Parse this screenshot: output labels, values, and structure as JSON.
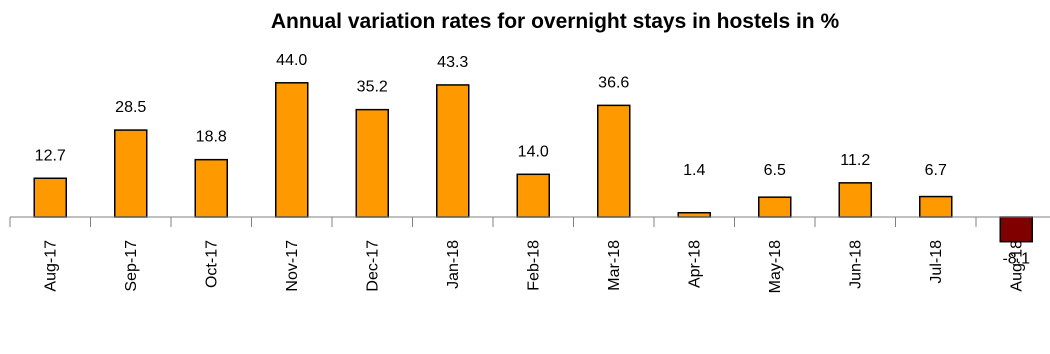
{
  "chart_data": {
    "type": "bar",
    "title": "Annual variation rates for overnight stays in hostels in %",
    "xlabel": "",
    "ylabel": "",
    "categories": [
      "Aug-17",
      "Sep-17",
      "Oct-17",
      "Nov-17",
      "Dec-17",
      "Jan-18",
      "Feb-18",
      "Mar-18",
      "Apr-18",
      "May-18",
      "Jun-18",
      "Jul-18",
      "Aug-18"
    ],
    "values": [
      12.7,
      28.5,
      18.8,
      44.0,
      35.2,
      43.3,
      14.0,
      36.6,
      1.4,
      6.5,
      11.2,
      6.7,
      -8.1
    ],
    "value_labels": [
      "12.7",
      "28.5",
      "18.8",
      "44.0",
      "35.2",
      "43.3",
      "14.0",
      "36.6",
      "1.4",
      "6.5",
      "11.2",
      "6.7",
      "-8.1"
    ],
    "ylim": [
      -10,
      50
    ],
    "grid": false,
    "legend": "none",
    "colors": {
      "positive": "#FF9900",
      "negative": "#800000",
      "outline": "#000000"
    }
  }
}
